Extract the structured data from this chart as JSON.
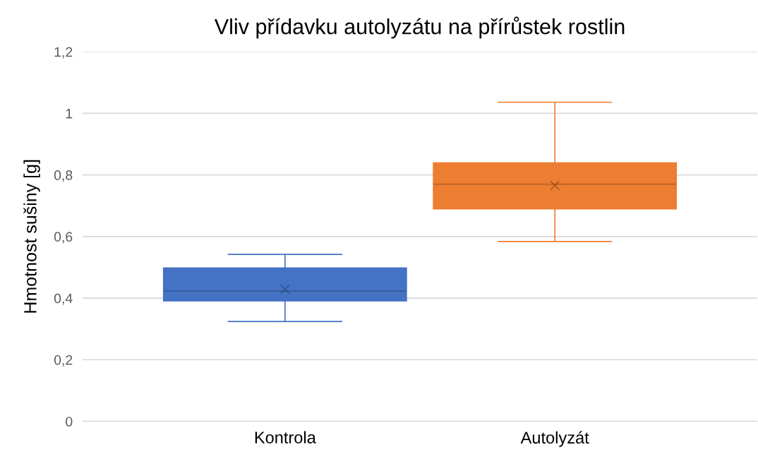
{
  "chart_data": {
    "type": "box",
    "title": "Vliv přídavku autolyzátu na přírůstek rostlin",
    "ylabel": "Hmotnost sušiny [g]",
    "categories": [
      "Kontrola",
      "Autolyzát"
    ],
    "colors": [
      "#4472c4",
      "#ed7d31"
    ],
    "boxes": [
      {
        "low": 0.324,
        "q1": 0.391,
        "median": 0.423,
        "q3": 0.498,
        "high": 0.542,
        "mean": 0.429
      },
      {
        "low": 0.584,
        "q1": 0.69,
        "median": 0.77,
        "q3": 0.839,
        "high": 1.036,
        "mean": 0.766
      }
    ],
    "ylim": [
      0,
      1.2
    ],
    "yticks": [
      0,
      {
        "value": 0.2,
        "label": "0,2"
      },
      {
        "value": 0.4,
        "label": "0,4"
      },
      {
        "value": 0.6,
        "label": "0,6"
      },
      {
        "value": 0.8,
        "label": "0,8"
      },
      1,
      {
        "value": 1.2,
        "label": "1,2"
      }
    ],
    "grid": "y",
    "marker": "cross"
  }
}
